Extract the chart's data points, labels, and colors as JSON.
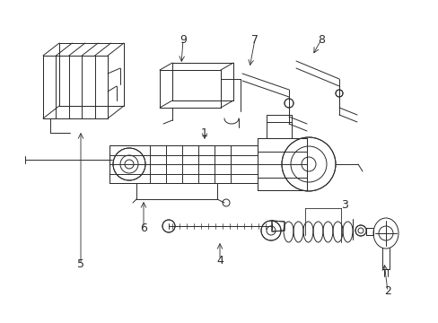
{
  "bg_color": "#ffffff",
  "line_color": "#2a2a2a",
  "figsize": [
    4.89,
    3.6
  ],
  "dpi": 100,
  "lw": 0.7
}
